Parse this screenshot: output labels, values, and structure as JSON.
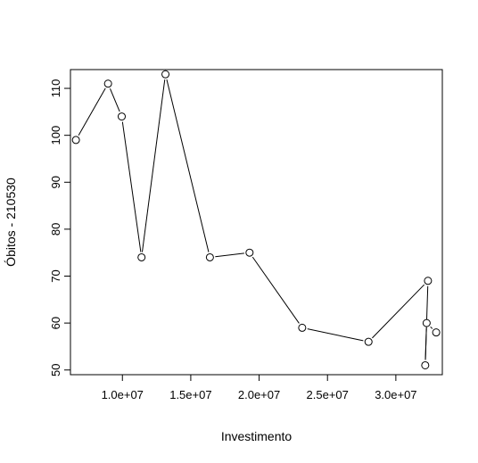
{
  "chart_data": {
    "type": "line",
    "title": "",
    "xlabel": "Investimento",
    "ylabel": "Óbitos - 210530",
    "xlim": [
      6200000,
      33400000
    ],
    "ylim": [
      49,
      114
    ],
    "x_ticks": [
      10000000,
      15000000,
      20000000,
      25000000,
      30000000
    ],
    "x_tick_labels": [
      "1.0e+07",
      "1.5e+07",
      "2.0e+07",
      "2.5e+07",
      "3.0e+07"
    ],
    "y_ticks": [
      50,
      60,
      70,
      80,
      90,
      100,
      110
    ],
    "y_tick_labels": [
      "50",
      "60",
      "70",
      "80",
      "90",
      "100",
      "110"
    ],
    "grid": false,
    "marker": "open-circle",
    "line_color": "#000000",
    "series": [
      {
        "x": [
          6600000,
          8950000,
          9950000,
          11400000,
          13150000,
          16400000,
          19300000,
          23150000,
          28000000,
          32350000,
          32150000,
          32250000,
          32950000
        ],
        "y": [
          99,
          111,
          104,
          74,
          113,
          74,
          75,
          59,
          56,
          69,
          51,
          60,
          58
        ]
      }
    ]
  }
}
